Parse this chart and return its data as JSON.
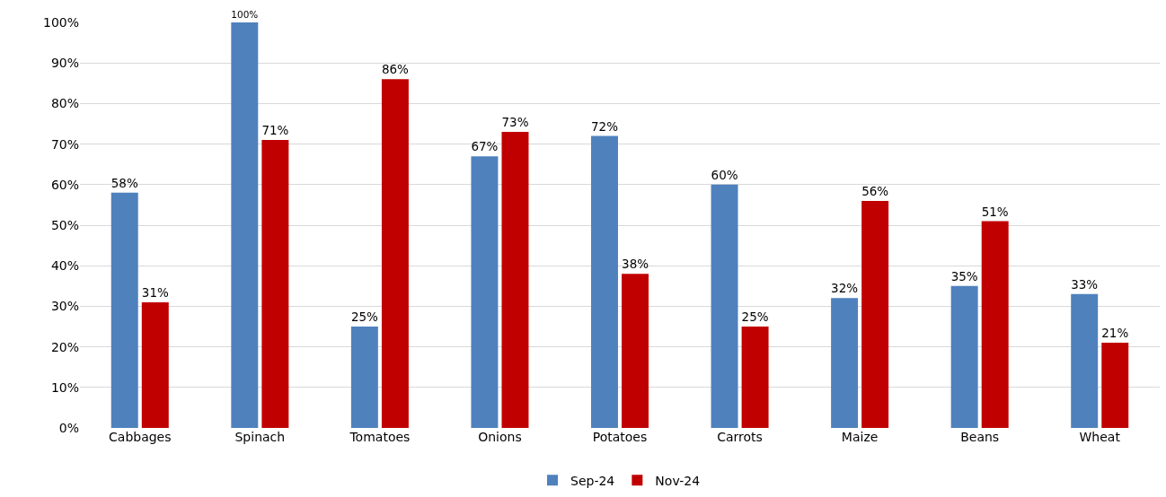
{
  "chart_data": {
    "type": "bar",
    "categories": [
      "Cabbages",
      "Spinach",
      "Tomatoes",
      "Onions",
      "Potatoes",
      "Carrots",
      "Maize",
      "Beans",
      "Wheat"
    ],
    "series": [
      {
        "name": "Sep-24",
        "color": "#4f81bd",
        "values": [
          58,
          100,
          25,
          67,
          72,
          60,
          32,
          35,
          33
        ],
        "value_labels": [
          "58%",
          "100%",
          "25%",
          "67%",
          "72%",
          "60%",
          "32%",
          "35%",
          "33%"
        ]
      },
      {
        "name": "Nov-24",
        "color": "#c00000",
        "values": [
          31,
          71,
          86,
          73,
          38,
          25,
          56,
          51,
          21
        ],
        "value_labels": [
          "31%",
          "71%",
          "86%",
          "73%",
          "38%",
          "25%",
          "56%",
          "51%",
          "21%"
        ]
      }
    ],
    "ylim": [
      0,
      100
    ],
    "yticks": [
      {
        "value": 0,
        "label": "0%"
      },
      {
        "value": 10,
        "label": "10%"
      },
      {
        "value": 20,
        "label": "20%"
      },
      {
        "value": 30,
        "label": "30%"
      },
      {
        "value": 40,
        "label": "40%"
      },
      {
        "value": 50,
        "label": "50%"
      },
      {
        "value": 60,
        "label": "60%"
      },
      {
        "value": 70,
        "label": "70%"
      },
      {
        "value": 80,
        "label": "80%"
      },
      {
        "value": 90,
        "label": "90%"
      },
      {
        "value": 100,
        "label": "100%"
      }
    ],
    "grid": "y",
    "legend": "bottom"
  }
}
